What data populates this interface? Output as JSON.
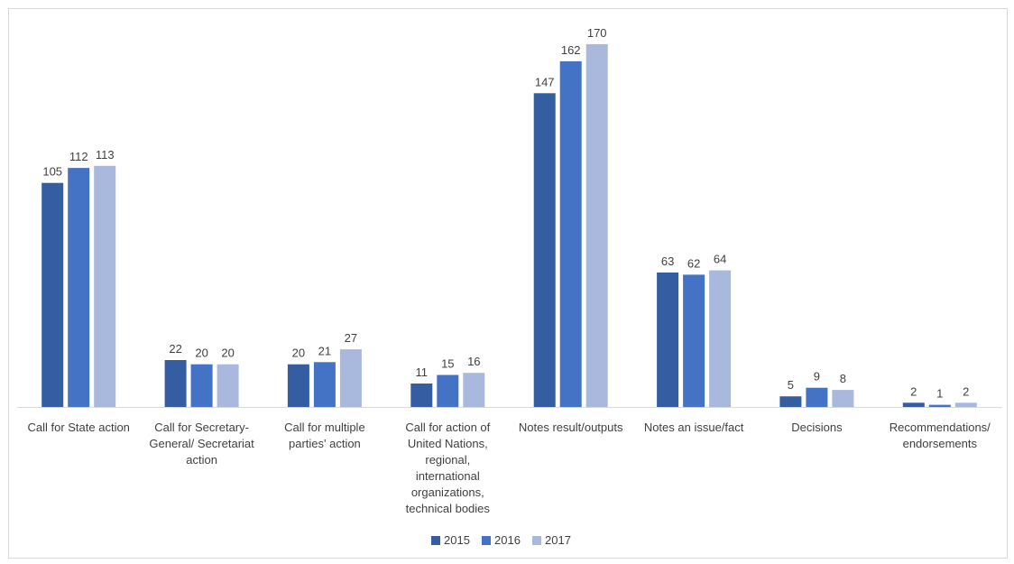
{
  "chart_data": {
    "type": "bar",
    "title": "",
    "xlabel": "",
    "ylabel": "",
    "ylim": [
      0,
      175
    ],
    "grid": false,
    "legend_position": "bottom-center",
    "categories": [
      [
        "Call for State action"
      ],
      [
        "Call for Secretary-",
        "General/ Secretariat",
        "action"
      ],
      [
        "Call for multiple",
        "parties' action"
      ],
      [
        "Call for action of",
        "United Nations,",
        "regional,",
        "international",
        "organizations,",
        "technical bodies"
      ],
      [
        "Notes result/outputs"
      ],
      [
        "Notes an issue/fact"
      ],
      [
        "Decisions"
      ],
      [
        "Recommendations/",
        "endorsements"
      ]
    ],
    "series": [
      {
        "name": "2015",
        "color": "#345ea1",
        "values": [
          105,
          22,
          20,
          11,
          147,
          63,
          5,
          2
        ]
      },
      {
        "name": "2016",
        "color": "#4472c4",
        "values": [
          112,
          20,
          21,
          15,
          162,
          62,
          9,
          1
        ]
      },
      {
        "name": "2017",
        "color": "#a9b8dd",
        "values": [
          113,
          20,
          27,
          16,
          170,
          64,
          8,
          2
        ]
      }
    ]
  }
}
